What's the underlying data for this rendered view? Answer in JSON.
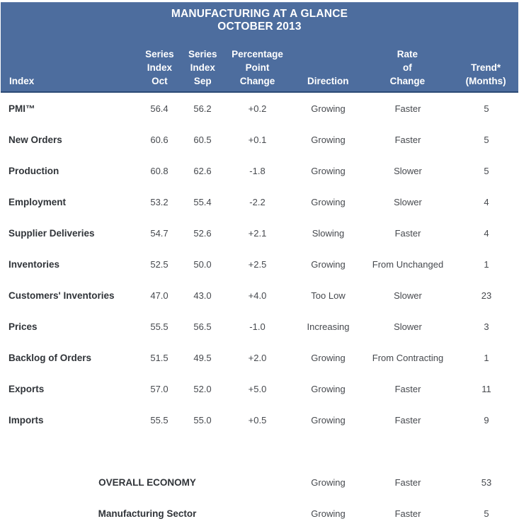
{
  "title": {
    "line1": "MANUFACTURING AT A GLANCE",
    "line2": "OCTOBER 2013"
  },
  "header": {
    "index": "Index",
    "oct": "Series\nIndex\nOct",
    "sep": "Series\nIndex\nSep",
    "change": "Percentage\nPoint\nChange",
    "direction": "Direction",
    "rate": "Rate\nof\nChange",
    "trend": "Trend*\n(Months)"
  },
  "rows": [
    {
      "label": "PMI™",
      "oct": "56.4",
      "sep": "56.2",
      "change": "+0.2",
      "direction": "Growing",
      "rate": "Faster",
      "trend": "5"
    },
    {
      "label": "New Orders",
      "oct": "60.6",
      "sep": "60.5",
      "change": "+0.1",
      "direction": "Growing",
      "rate": "Faster",
      "trend": "5"
    },
    {
      "label": "Production",
      "oct": "60.8",
      "sep": "62.6",
      "change": "-1.8",
      "direction": "Growing",
      "rate": "Slower",
      "trend": "5"
    },
    {
      "label": "Employment",
      "oct": "53.2",
      "sep": "55.4",
      "change": "-2.2",
      "direction": "Growing",
      "rate": "Slower",
      "trend": "4"
    },
    {
      "label": "Supplier Deliveries",
      "oct": "54.7",
      "sep": "52.6",
      "change": "+2.1",
      "direction": "Slowing",
      "rate": "Faster",
      "trend": "4"
    },
    {
      "label": "Inventories",
      "oct": "52.5",
      "sep": "50.0",
      "change": "+2.5",
      "direction": "Growing",
      "rate": "From Unchanged",
      "trend": "1"
    },
    {
      "label": "Customers' Inventories",
      "oct": "47.0",
      "sep": "43.0",
      "change": "+4.0",
      "direction": "Too Low",
      "rate": "Slower",
      "trend": "23"
    },
    {
      "label": "Prices",
      "oct": "55.5",
      "sep": "56.5",
      "change": "-1.0",
      "direction": "Increasing",
      "rate": "Slower",
      "trend": "3"
    },
    {
      "label": "Backlog of Orders",
      "oct": "51.5",
      "sep": "49.5",
      "change": "+2.0",
      "direction": "Growing",
      "rate": "From Contracting",
      "trend": "1"
    },
    {
      "label": "Exports",
      "oct": "57.0",
      "sep": "52.0",
      "change": "+5.0",
      "direction": "Growing",
      "rate": "Faster",
      "trend": "11"
    },
    {
      "label": "Imports",
      "oct": "55.5",
      "sep": "55.0",
      "change": "+0.5",
      "direction": "Growing",
      "rate": "Faster",
      "trend": "9"
    }
  ],
  "summary": [
    {
      "label": "OVERALL ECONOMY",
      "direction": "Growing",
      "rate": "Faster",
      "trend": "53"
    },
    {
      "label": "Manufacturing Sector",
      "direction": "Growing",
      "rate": "Faster",
      "trend": "5"
    }
  ],
  "colors": {
    "header_bg": "#4d6d9e",
    "header_border_bottom": "#2b4a75",
    "header_text": "#ffffff",
    "label_text": "#303439",
    "value_text": "#46494e"
  },
  "chart_data": {
    "type": "table",
    "title": "MANUFACTURING AT A GLANCE",
    "subtitle": "OCTOBER 2013",
    "columns": [
      "Index",
      "Series Index Oct",
      "Series Index Sep",
      "Percentage Point Change",
      "Direction",
      "Rate of Change",
      "Trend* (Months)"
    ],
    "rows": [
      [
        "PMI™",
        56.4,
        56.2,
        0.2,
        "Growing",
        "Faster",
        5
      ],
      [
        "New Orders",
        60.6,
        60.5,
        0.1,
        "Growing",
        "Faster",
        5
      ],
      [
        "Production",
        60.8,
        62.6,
        -1.8,
        "Growing",
        "Slower",
        5
      ],
      [
        "Employment",
        53.2,
        55.4,
        -2.2,
        "Growing",
        "Slower",
        4
      ],
      [
        "Supplier Deliveries",
        54.7,
        52.6,
        2.1,
        "Slowing",
        "Faster",
        4
      ],
      [
        "Inventories",
        52.5,
        50.0,
        2.5,
        "Growing",
        "From Unchanged",
        1
      ],
      [
        "Customers' Inventories",
        47.0,
        43.0,
        4.0,
        "Too Low",
        "Slower",
        23
      ],
      [
        "Prices",
        55.5,
        56.5,
        -1.0,
        "Increasing",
        "Slower",
        3
      ],
      [
        "Backlog of Orders",
        51.5,
        49.5,
        2.0,
        "Growing",
        "From Contracting",
        1
      ],
      [
        "Exports",
        57.0,
        52.0,
        5.0,
        "Growing",
        "Faster",
        11
      ],
      [
        "Imports",
        55.5,
        55.0,
        0.5,
        "Growing",
        "Faster",
        9
      ]
    ],
    "summary_rows": [
      [
        "OVERALL ECONOMY",
        null,
        null,
        null,
        "Growing",
        "Faster",
        53
      ],
      [
        "Manufacturing Sector",
        null,
        null,
        null,
        "Growing",
        "Faster",
        5
      ]
    ]
  }
}
